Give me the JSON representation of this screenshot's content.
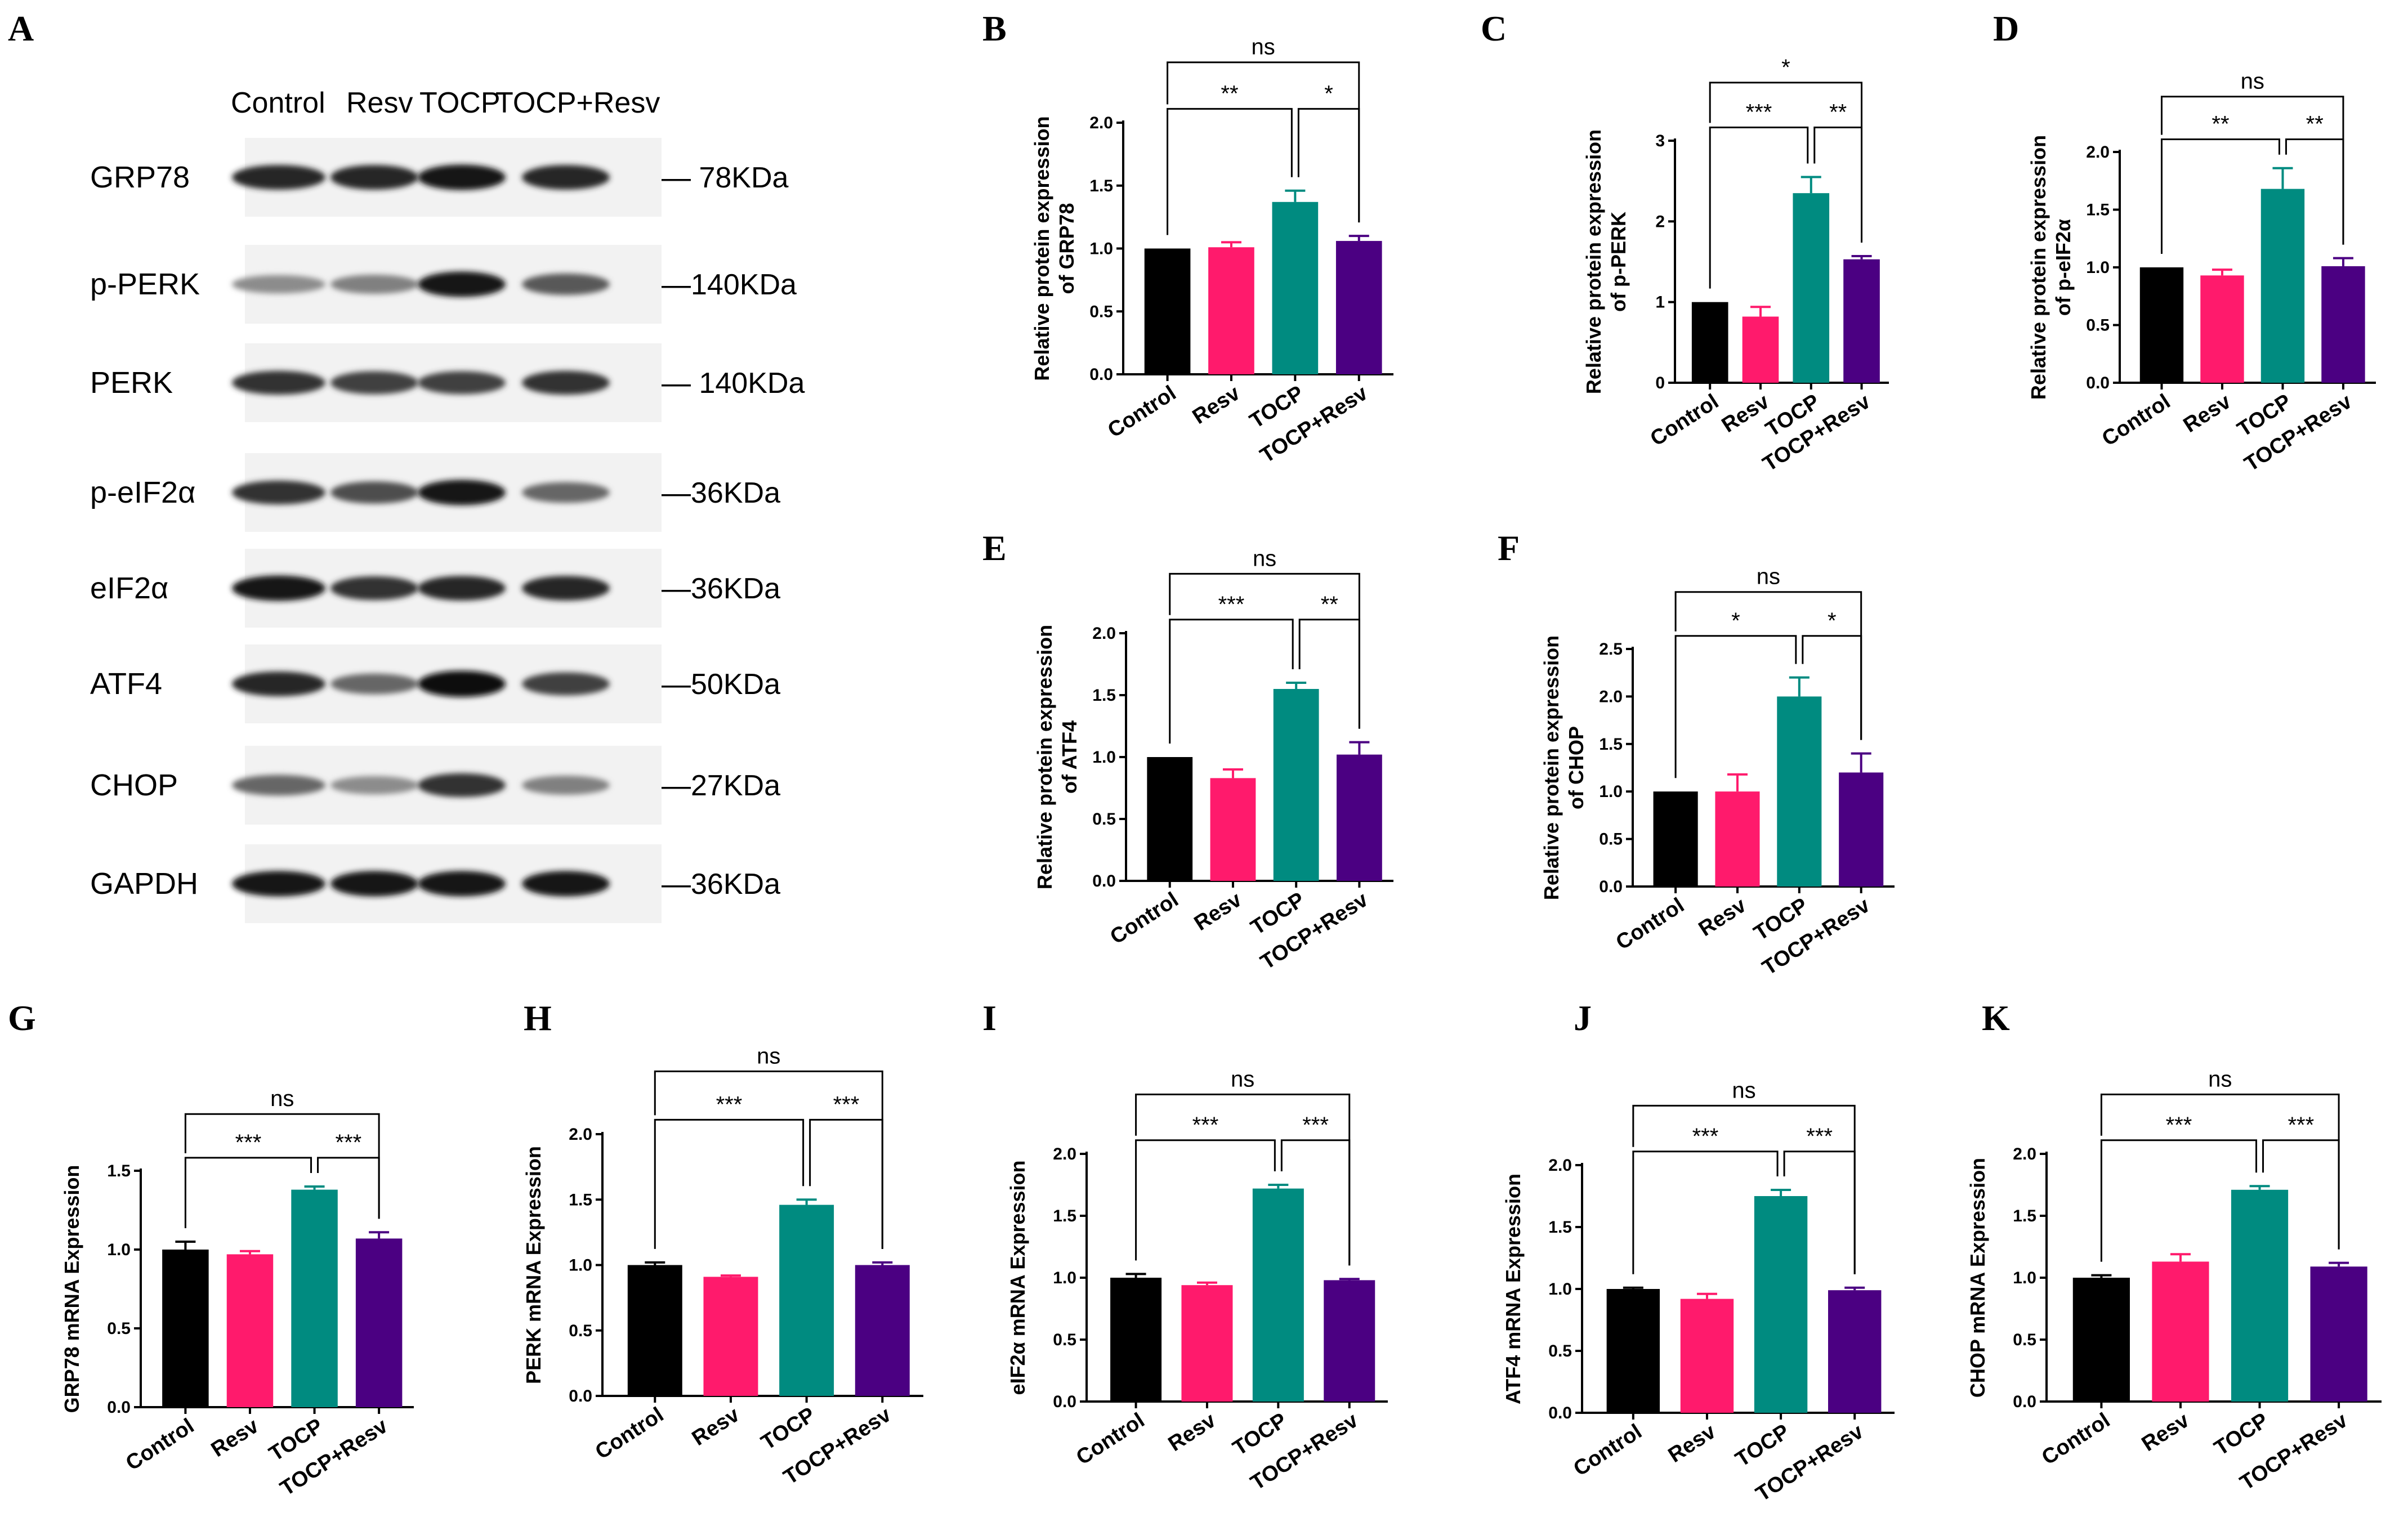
{
  "panel_A": {
    "letter": "A",
    "columns": [
      "Control",
      "Resv",
      "TOCP",
      "TOCP+Resv"
    ],
    "blots": [
      {
        "label": "GRP78",
        "mw": "— 78KDa",
        "intensity": [
          0.85,
          0.85,
          0.9,
          0.85
        ]
      },
      {
        "label": "p-PERK",
        "mw": "—140KDa",
        "intensity": [
          0.45,
          0.5,
          0.9,
          0.65
        ]
      },
      {
        "label": "PERK",
        "mw": "— 140KDa",
        "intensity": [
          0.8,
          0.75,
          0.75,
          0.8
        ]
      },
      {
        "label": "p-eIF2α",
        "mw": "—36KDa",
        "intensity": [
          0.8,
          0.7,
          0.9,
          0.6
        ]
      },
      {
        "label": "eIF2α",
        "mw": "—36KDa",
        "intensity": [
          0.9,
          0.8,
          0.85,
          0.85
        ]
      },
      {
        "label": "ATF4",
        "mw": "—50KDa",
        "intensity": [
          0.85,
          0.6,
          0.95,
          0.75
        ]
      },
      {
        "label": "CHOP",
        "mw": "—27KDa",
        "intensity": [
          0.6,
          0.45,
          0.8,
          0.5
        ]
      },
      {
        "label": "GAPDH",
        "mw": "—36KDa",
        "intensity": [
          0.9,
          0.9,
          0.9,
          0.9
        ]
      }
    ]
  },
  "colors": {
    "Control": "#000000",
    "Resv": "#ff1a6c",
    "TOCP": "#008b80",
    "TOCP+Resv": "#4b0082"
  },
  "chart_data": [
    {
      "panel": "B",
      "type": "bar",
      "ylabel": [
        "Relative protein expression",
        "of GRP78"
      ],
      "categories": [
        "Control",
        "Resv",
        "TOCP",
        "TOCP+Resv"
      ],
      "values": [
        1.0,
        1.01,
        1.37,
        1.06
      ],
      "errors": [
        0.0,
        0.04,
        0.09,
        0.04
      ],
      "ylim": [
        0,
        2.0
      ],
      "yticks": [
        "0.0",
        "0.5",
        "1.0",
        "1.5",
        "2.0"
      ],
      "sig": [
        {
          "a": 0,
          "b": 3,
          "text": "ns"
        },
        {
          "a": 0,
          "b": 2,
          "text": "**"
        },
        {
          "a": 2,
          "b": 3,
          "text": "*"
        }
      ]
    },
    {
      "panel": "C",
      "type": "bar",
      "ylabel": [
        "Relative protein expression",
        "of p-PERK"
      ],
      "categories": [
        "Control",
        "Resv",
        "TOCP",
        "TOCP+Resv"
      ],
      "values": [
        1.0,
        0.82,
        2.35,
        1.53
      ],
      "errors": [
        0.0,
        0.12,
        0.2,
        0.04
      ],
      "ylim": [
        0,
        3
      ],
      "yticks": [
        "0",
        "1",
        "2",
        "3"
      ],
      "sig": [
        {
          "a": 0,
          "b": 3,
          "text": "*"
        },
        {
          "a": 0,
          "b": 2,
          "text": "***"
        },
        {
          "a": 2,
          "b": 3,
          "text": "**"
        }
      ]
    },
    {
      "panel": "D",
      "type": "bar",
      "ylabel": [
        "Relative protein expression",
        "of p-eIF2α"
      ],
      "categories": [
        "Control",
        "Resv",
        "TOCP",
        "TOCP+Resv"
      ],
      "values": [
        1.0,
        0.93,
        1.68,
        1.01
      ],
      "errors": [
        0.0,
        0.05,
        0.18,
        0.07
      ],
      "ylim": [
        0,
        2.0
      ],
      "yticks": [
        "0.0",
        "0.5",
        "1.0",
        "1.5",
        "2.0"
      ],
      "sig": [
        {
          "a": 0,
          "b": 3,
          "text": "ns"
        },
        {
          "a": 0,
          "b": 2,
          "text": "**"
        },
        {
          "a": 2,
          "b": 3,
          "text": "**"
        }
      ]
    },
    {
      "panel": "E",
      "type": "bar",
      "ylabel": [
        "Relative protein expression",
        "of ATF4"
      ],
      "categories": [
        "Control",
        "Resv",
        "TOCP",
        "TOCP+Resv"
      ],
      "values": [
        1.0,
        0.83,
        1.55,
        1.02
      ],
      "errors": [
        0.0,
        0.07,
        0.05,
        0.1
      ],
      "ylim": [
        0,
        2.0
      ],
      "yticks": [
        "0.0",
        "0.5",
        "1.0",
        "1.5",
        "2.0"
      ],
      "sig": [
        {
          "a": 0,
          "b": 3,
          "text": "ns"
        },
        {
          "a": 0,
          "b": 2,
          "text": "***"
        },
        {
          "a": 2,
          "b": 3,
          "text": "**"
        }
      ]
    },
    {
      "panel": "F",
      "type": "bar",
      "ylabel": [
        "Relative protein expression",
        "of CHOP"
      ],
      "categories": [
        "Control",
        "Resv",
        "TOCP",
        "TOCP+Resv"
      ],
      "values": [
        1.0,
        1.0,
        2.0,
        1.2
      ],
      "errors": [
        0.0,
        0.18,
        0.2,
        0.2
      ],
      "ylim": [
        0,
        2.5
      ],
      "yticks": [
        "0.0",
        "0.5",
        "1.0",
        "1.5",
        "2.0",
        "2.5"
      ],
      "sig": [
        {
          "a": 0,
          "b": 3,
          "text": "ns"
        },
        {
          "a": 0,
          "b": 2,
          "text": "*"
        },
        {
          "a": 2,
          "b": 3,
          "text": "*"
        }
      ]
    },
    {
      "panel": "G",
      "type": "bar",
      "ylabel": [
        "GRP78 mRNA Expression"
      ],
      "categories": [
        "Control",
        "Resv",
        "TOCP",
        "TOCP+Resv"
      ],
      "values": [
        1.0,
        0.97,
        1.38,
        1.07
      ],
      "errors": [
        0.05,
        0.02,
        0.02,
        0.04
      ],
      "ylim": [
        0,
        1.5
      ],
      "yticks": [
        "0.0",
        "0.5",
        "1.0",
        "1.5"
      ],
      "sig": [
        {
          "a": 0,
          "b": 3,
          "text": "ns"
        },
        {
          "a": 0,
          "b": 2,
          "text": "***"
        },
        {
          "a": 2,
          "b": 3,
          "text": "***"
        }
      ]
    },
    {
      "panel": "H",
      "type": "bar",
      "ylabel": [
        "PERK mRNA Expression"
      ],
      "categories": [
        "Control",
        "Resv",
        "TOCP",
        "TOCP+Resv"
      ],
      "values": [
        1.0,
        0.91,
        1.46,
        1.0
      ],
      "errors": [
        0.02,
        0.01,
        0.04,
        0.02
      ],
      "ylim": [
        0,
        2.0
      ],
      "yticks": [
        "0.0",
        "0.5",
        "1.0",
        "1.5",
        "2.0"
      ],
      "sig": [
        {
          "a": 0,
          "b": 3,
          "text": "ns"
        },
        {
          "a": 0,
          "b": 2,
          "text": "***"
        },
        {
          "a": 2,
          "b": 3,
          "text": "***"
        }
      ]
    },
    {
      "panel": "I",
      "type": "bar",
      "ylabel": [
        "eIF2α mRNA Expression"
      ],
      "categories": [
        "Control",
        "Resv",
        "TOCP",
        "TOCP+Resv"
      ],
      "values": [
        1.0,
        0.94,
        1.72,
        0.98
      ],
      "errors": [
        0.03,
        0.02,
        0.03,
        0.01
      ],
      "ylim": [
        0,
        2.0
      ],
      "yticks": [
        "0.0",
        "0.5",
        "1.0",
        "1.5",
        "2.0"
      ],
      "sig": [
        {
          "a": 0,
          "b": 3,
          "text": "ns"
        },
        {
          "a": 0,
          "b": 2,
          "text": "***"
        },
        {
          "a": 2,
          "b": 3,
          "text": "***"
        }
      ]
    },
    {
      "panel": "J",
      "type": "bar",
      "ylabel": [
        "ATF4 mRNA Expression"
      ],
      "categories": [
        "Control",
        "Resv",
        "TOCP",
        "TOCP+Resv"
      ],
      "values": [
        1.0,
        0.92,
        1.75,
        0.99
      ],
      "errors": [
        0.01,
        0.04,
        0.05,
        0.02
      ],
      "ylim": [
        0,
        2.0
      ],
      "yticks": [
        "0.0",
        "0.5",
        "1.0",
        "1.5",
        "2.0"
      ],
      "sig": [
        {
          "a": 0,
          "b": 3,
          "text": "ns"
        },
        {
          "a": 0,
          "b": 2,
          "text": "***"
        },
        {
          "a": 2,
          "b": 3,
          "text": "***"
        }
      ]
    },
    {
      "panel": "K",
      "type": "bar",
      "ylabel": [
        "CHOP mRNA Expression"
      ],
      "categories": [
        "Control",
        "Resv",
        "TOCP",
        "TOCP+Resv"
      ],
      "values": [
        1.0,
        1.13,
        1.71,
        1.09
      ],
      "errors": [
        0.02,
        0.06,
        0.03,
        0.03
      ],
      "ylim": [
        0,
        2.0
      ],
      "yticks": [
        "0.0",
        "0.5",
        "1.0",
        "1.5",
        "2.0"
      ],
      "sig": [
        {
          "a": 0,
          "b": 3,
          "text": "ns"
        },
        {
          "a": 0,
          "b": 2,
          "text": "***"
        },
        {
          "a": 2,
          "b": 3,
          "text": "***"
        }
      ]
    }
  ]
}
